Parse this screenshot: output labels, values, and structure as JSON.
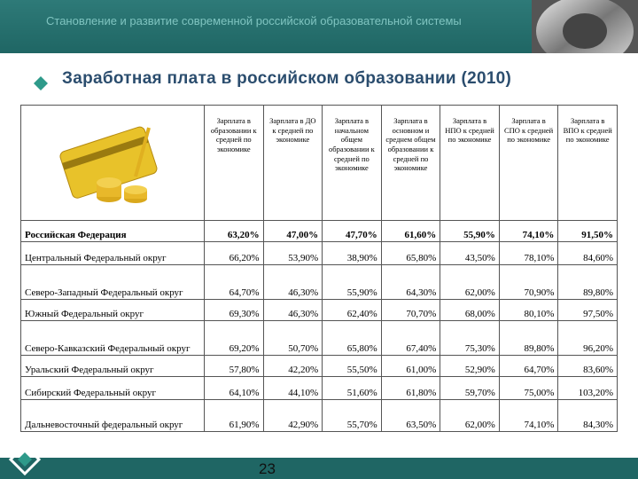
{
  "header": {
    "title": "Становление и развитие современной российской образовательной системы"
  },
  "slide": {
    "title": "Заработная плата в российском образовании (2010)",
    "page_number": "23"
  },
  "table": {
    "columns": [
      "Зарплата в образовании к средней по экономике",
      "Зарплата в ДО к средней по экономике",
      "Зарплата в начальном общем образовании к средней по экономике",
      "Зарплата в основном и среднем общем образовании к средней по экономике",
      "Зарплата в НПО к средней по экономике",
      "Зарплата в СПО к средней по экономике",
      "Зарплата в ВПО к средней по экономике"
    ],
    "rows": [
      {
        "label": "Российская Федерация",
        "cells": [
          "63,20%",
          "47,00%",
          "47,70%",
          "61,60%",
          "55,90%",
          "74,10%",
          "91,50%"
        ]
      },
      {
        "label": "Центральный Федеральный округ",
        "cells": [
          "66,20%",
          "53,90%",
          "38,90%",
          "65,80%",
          "43,50%",
          "78,10%",
          "84,60%"
        ]
      },
      {
        "label": "Северо-Западный Федеральный округ",
        "cells": [
          "64,70%",
          "46,30%",
          "55,90%",
          "64,30%",
          "62,00%",
          "70,90%",
          "89,80%"
        ]
      },
      {
        "label": "Южный Федеральный округ",
        "cells": [
          "69,30%",
          "46,30%",
          "62,40%",
          "70,70%",
          "68,00%",
          "80,10%",
          "97,50%"
        ]
      },
      {
        "label": "Северо-Кавказский Федеральный округ",
        "cells": [
          "69,20%",
          "50,70%",
          "65,80%",
          "67,40%",
          "75,30%",
          "89,80%",
          "96,20%"
        ]
      },
      {
        "label": "Уральский Федеральный округ",
        "cells": [
          "57,80%",
          "42,20%",
          "55,50%",
          "61,00%",
          "52,90%",
          "64,70%",
          "83,60%"
        ]
      },
      {
        "label": "Сибирский Федеральный округ",
        "cells": [
          "64,10%",
          "44,10%",
          "51,60%",
          "61,80%",
          "59,70%",
          "75,00%",
          "103,20%"
        ]
      },
      {
        "label": "Дальневосточный федеральный округ",
        "cells": [
          "61,90%",
          "42,90%",
          "55,70%",
          "63,50%",
          "62,00%",
          "74,10%",
          "84,30%"
        ]
      }
    ]
  }
}
